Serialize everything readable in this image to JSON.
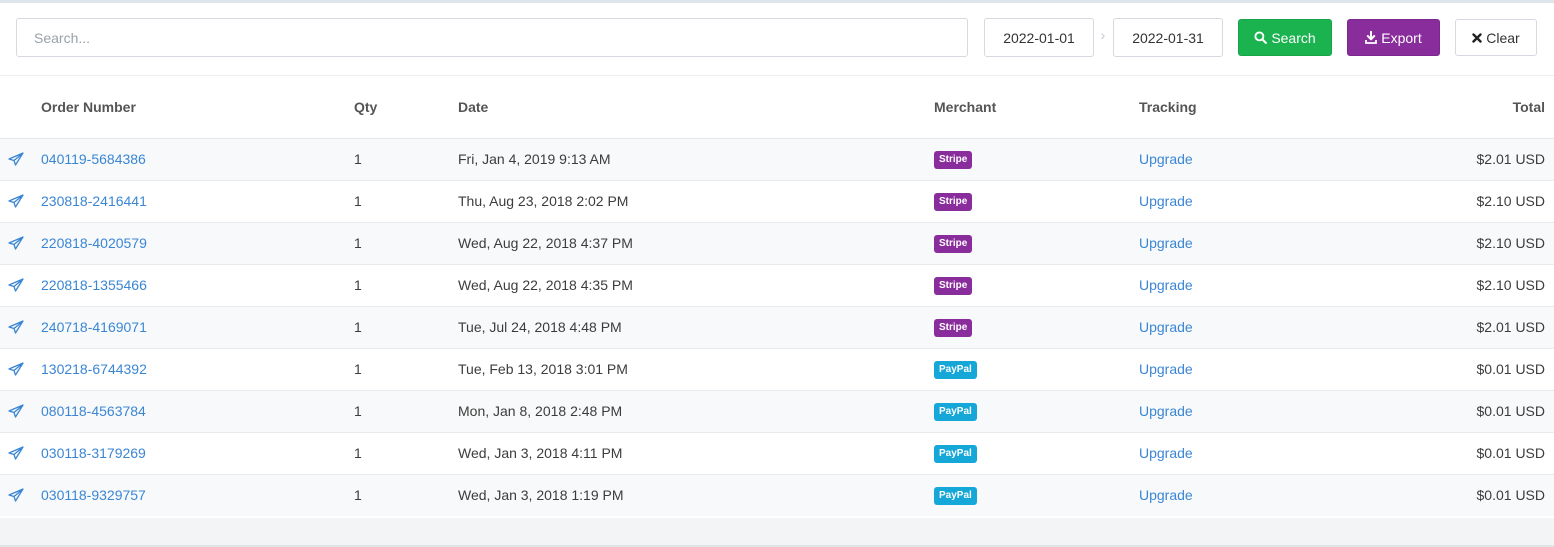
{
  "search": {
    "placeholder": "Search..."
  },
  "date_range": {
    "from": "2022-01-01",
    "separator": "›",
    "to": "2022-01-31"
  },
  "buttons": {
    "search_label": "Search",
    "export_label": "Export",
    "clear_label": "Clear"
  },
  "table": {
    "headers": {
      "order": "Order Number",
      "qty": "Qty",
      "date": "Date",
      "merchant": "Merchant",
      "tracking": "Tracking",
      "total": "Total"
    },
    "rows": [
      {
        "order": "040119-5684386",
        "qty": "1",
        "date": "Fri, Jan 4, 2019 9:13 AM",
        "merchant": "Stripe",
        "tracking": "Upgrade",
        "total": "$2.01 USD"
      },
      {
        "order": "230818-2416441",
        "qty": "1",
        "date": "Thu, Aug 23, 2018 2:02 PM",
        "merchant": "Stripe",
        "tracking": "Upgrade",
        "total": "$2.10 USD"
      },
      {
        "order": "220818-4020579",
        "qty": "1",
        "date": "Wed, Aug 22, 2018 4:37 PM",
        "merchant": "Stripe",
        "tracking": "Upgrade",
        "total": "$2.10 USD"
      },
      {
        "order": "220818-1355466",
        "qty": "1",
        "date": "Wed, Aug 22, 2018 4:35 PM",
        "merchant": "Stripe",
        "tracking": "Upgrade",
        "total": "$2.10 USD"
      },
      {
        "order": "240718-4169071",
        "qty": "1",
        "date": "Tue, Jul 24, 2018 4:48 PM",
        "merchant": "Stripe",
        "tracking": "Upgrade",
        "total": "$2.01 USD"
      },
      {
        "order": "130218-6744392",
        "qty": "1",
        "date": "Tue, Feb 13, 2018 3:01 PM",
        "merchant": "PayPal",
        "tracking": "Upgrade",
        "total": "$0.01 USD"
      },
      {
        "order": "080118-4563784",
        "qty": "1",
        "date": "Mon, Jan 8, 2018 2:48 PM",
        "merchant": "PayPal",
        "tracking": "Upgrade",
        "total": "$0.01 USD"
      },
      {
        "order": "030118-3179269",
        "qty": "1",
        "date": "Wed, Jan 3, 2018 4:11 PM",
        "merchant": "PayPal",
        "tracking": "Upgrade",
        "total": "$0.01 USD"
      },
      {
        "order": "030118-9329757",
        "qty": "1",
        "date": "Wed, Jan 3, 2018 1:19 PM",
        "merchant": "PayPal",
        "tracking": "Upgrade",
        "total": "$0.01 USD"
      }
    ]
  },
  "merchant_colors": {
    "Stripe": "#8a2d9c",
    "PayPal": "#15a7d8"
  },
  "colors": {
    "link": "#3a86d4",
    "search_button": "#1ab34f",
    "export_button": "#8a2d9c"
  },
  "icons": {
    "row": "send-icon",
    "search": "search-icon",
    "export": "download-icon",
    "clear": "close-icon"
  }
}
